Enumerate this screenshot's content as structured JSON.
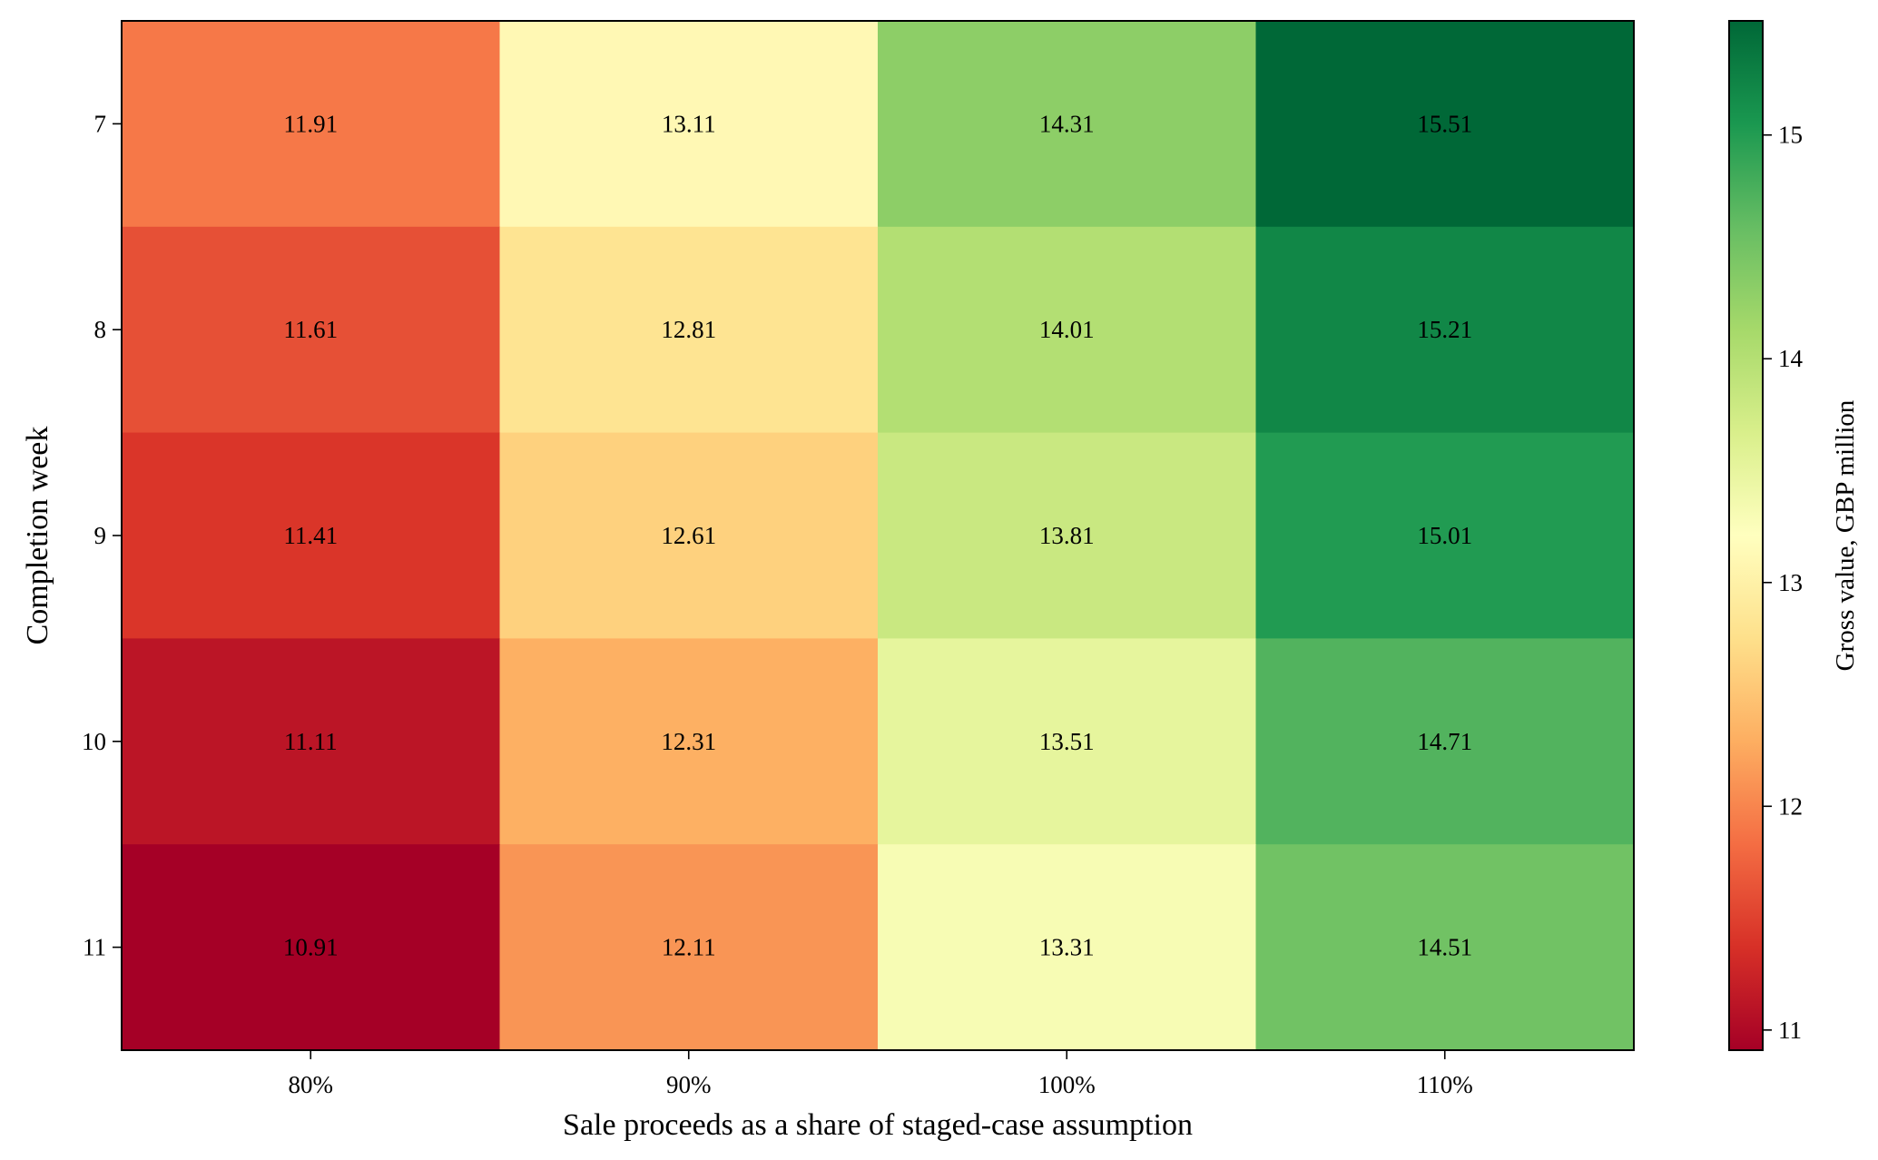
{
  "chart_data": {
    "type": "heatmap",
    "title": "",
    "xlabel": "Sale proceeds as a share of staged-case assumption",
    "ylabel": "Completion week",
    "x_categories": [
      "80%",
      "90%",
      "100%",
      "110%"
    ],
    "y_categories": [
      "7",
      "8",
      "9",
      "10",
      "11"
    ],
    "values": [
      [
        11.91,
        13.11,
        14.31,
        15.51
      ],
      [
        11.61,
        12.81,
        14.01,
        15.21
      ],
      [
        11.41,
        12.61,
        13.81,
        15.01
      ],
      [
        11.11,
        12.31,
        13.51,
        14.71
      ],
      [
        10.91,
        12.11,
        13.31,
        14.51
      ]
    ],
    "value_labels": [
      [
        "11.91",
        "13.11",
        "14.31",
        "15.51"
      ],
      [
        "11.61",
        "12.81",
        "14.01",
        "15.21"
      ],
      [
        "11.41",
        "12.61",
        "13.81",
        "15.01"
      ],
      [
        "11.11",
        "12.31",
        "13.51",
        "14.71"
      ],
      [
        "10.91",
        "12.11",
        "13.31",
        "14.51"
      ]
    ],
    "colormap": "RdYlGn",
    "colorbar": {
      "label": "Gross value, GBP million",
      "range": [
        10.91,
        15.51
      ],
      "ticks": [
        11,
        12,
        13,
        14,
        15
      ],
      "tick_labels": [
        "11",
        "12",
        "13",
        "14",
        "15"
      ]
    },
    "grid": false
  }
}
